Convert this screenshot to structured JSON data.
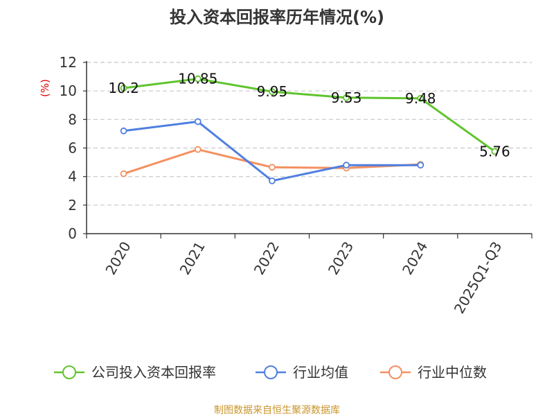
{
  "chart_data": {
    "type": "line",
    "title": "投入资本回报率历年情况(%)",
    "xlabel": "",
    "ylabel": "(%)",
    "categories": [
      "2020",
      "2021",
      "2022",
      "2023",
      "2024",
      "2025Q1-Q3"
    ],
    "ylim": [
      0,
      12
    ],
    "yticks": [
      0,
      2,
      4,
      6,
      8,
      10,
      12
    ],
    "grid": true,
    "legend_position": "bottom",
    "series": [
      {
        "name": "公司投入资本回报率",
        "color": "#5fc42d",
        "values": [
          10.2,
          10.85,
          9.95,
          9.53,
          9.48,
          5.76
        ],
        "labels": [
          "10.2",
          "10.85",
          "9.95",
          "9.53",
          "9.48",
          "5.76"
        ]
      },
      {
        "name": "行业均值",
        "color": "#4f7fdf",
        "values": [
          7.2,
          7.85,
          3.7,
          4.8,
          4.8,
          null
        ]
      },
      {
        "name": "行业中位数",
        "color": "#f49060",
        "values": [
          4.2,
          5.9,
          4.65,
          4.6,
          4.85,
          null
        ]
      }
    ],
    "source": "制图数据来自恒生聚源数据库"
  }
}
